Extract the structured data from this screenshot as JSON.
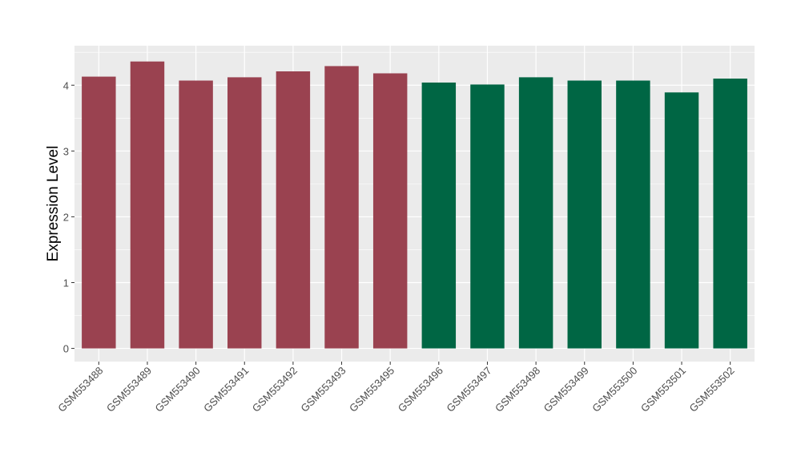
{
  "chart_data": {
    "type": "bar",
    "title": "",
    "xlabel": "",
    "ylabel": "Expression Level",
    "ylim": [
      -0.2,
      4.6
    ],
    "yticks": [
      0,
      1,
      2,
      3,
      4
    ],
    "grid": true,
    "legend": "none",
    "categories": [
      "GSM553488",
      "GSM553489",
      "GSM553490",
      "GSM553491",
      "GSM553492",
      "GSM553493",
      "GSM553495",
      "GSM553496",
      "GSM553497",
      "GSM553498",
      "GSM553499",
      "GSM553500",
      "GSM553501",
      "GSM553502"
    ],
    "values": [
      4.13,
      4.36,
      4.07,
      4.12,
      4.21,
      4.29,
      4.18,
      4.04,
      4.01,
      4.12,
      4.07,
      4.07,
      3.89,
      4.1
    ],
    "group_colors": [
      "#9A4250",
      "#9A4250",
      "#9A4250",
      "#9A4250",
      "#9A4250",
      "#9A4250",
      "#9A4250",
      "#006644",
      "#006644",
      "#006644",
      "#006644",
      "#006644",
      "#006644",
      "#006644"
    ],
    "panel_background": "#EBEBEB"
  }
}
